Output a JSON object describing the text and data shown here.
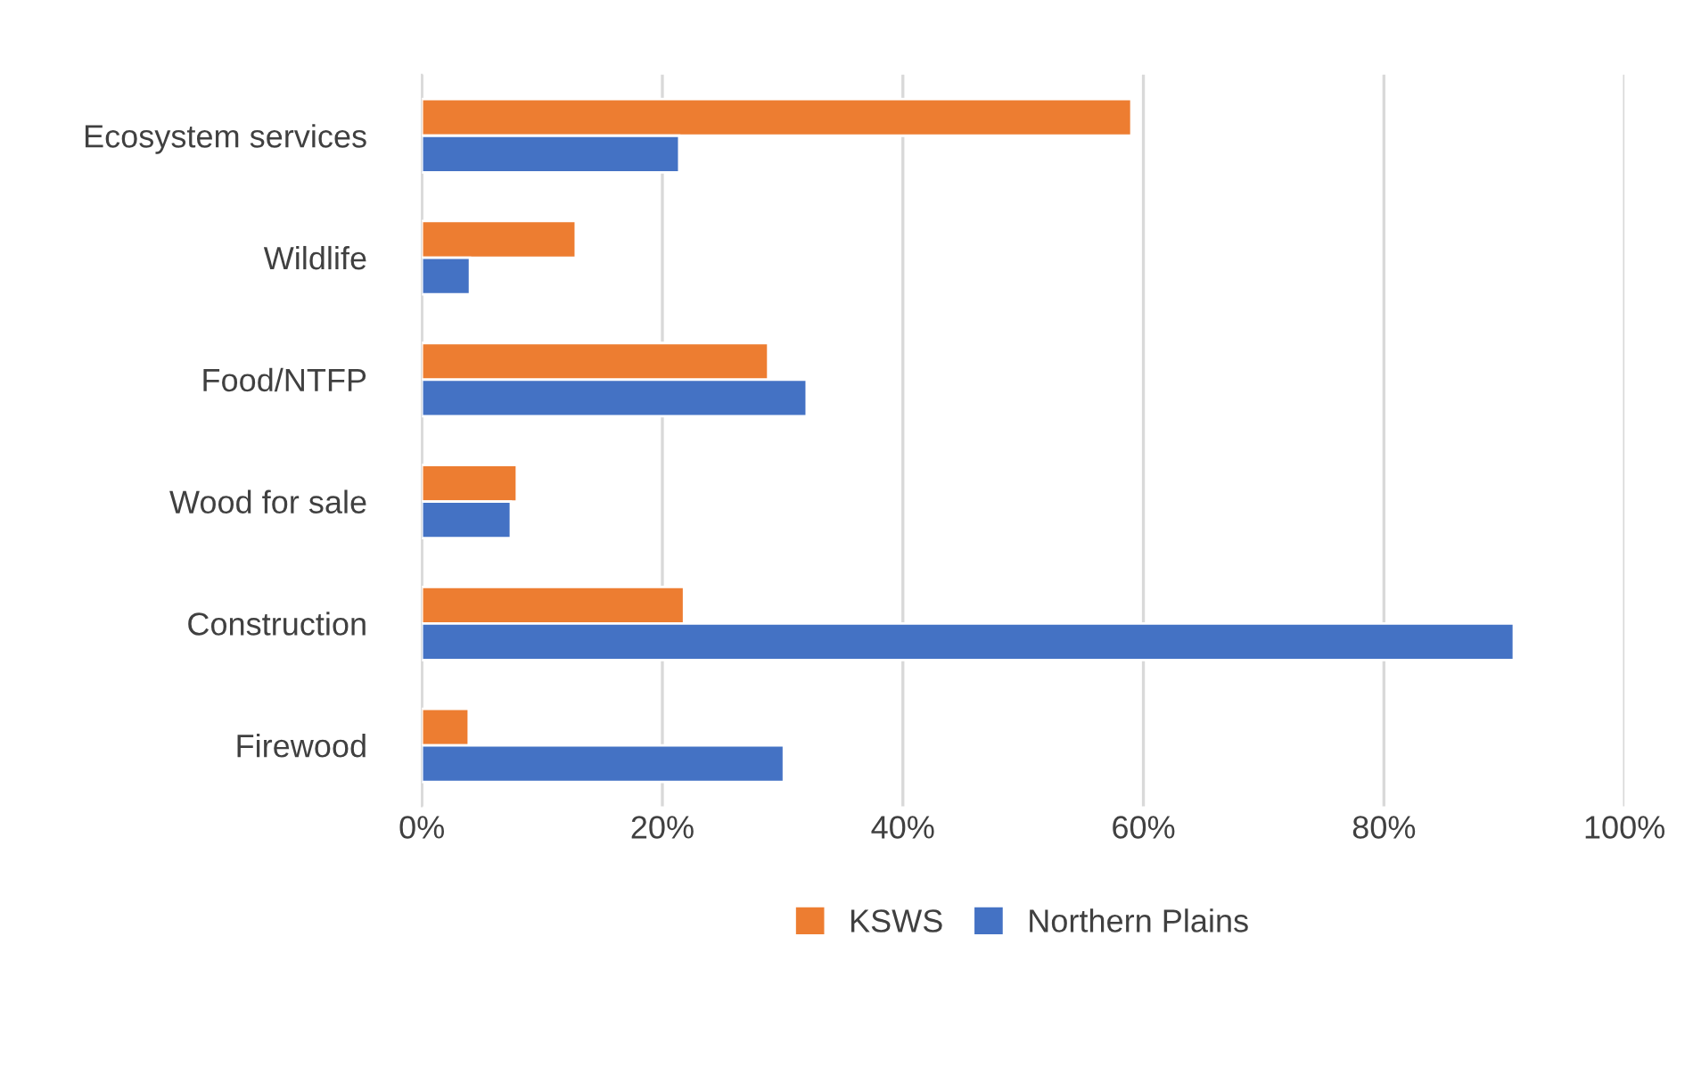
{
  "chart_data": {
    "type": "bar",
    "orientation": "horizontal",
    "categories": [
      "Ecosystem services",
      "Wildlife",
      "Food/NTFP",
      "Wood for sale",
      "Construction",
      "Firewood"
    ],
    "series": [
      {
        "name": "KSWS",
        "color": "#ed7d31",
        "values": [
          59,
          12.8,
          28.8,
          7.9,
          21.8,
          3.9
        ]
      },
      {
        "name": "Northern Plains",
        "color": "#4472c4",
        "values": [
          21.4,
          4.0,
          32.0,
          7.4,
          90.8,
          30.1
        ]
      }
    ],
    "xlim": [
      0,
      100
    ],
    "xticks": [
      {
        "value": 0,
        "label": "0%"
      },
      {
        "value": 20,
        "label": "20%"
      },
      {
        "value": 40,
        "label": "40%"
      },
      {
        "value": 60,
        "label": "60%"
      },
      {
        "value": 80,
        "label": "80%"
      },
      {
        "value": 100,
        "label": "100%"
      }
    ],
    "grid": "x",
    "legend": "bottom"
  }
}
